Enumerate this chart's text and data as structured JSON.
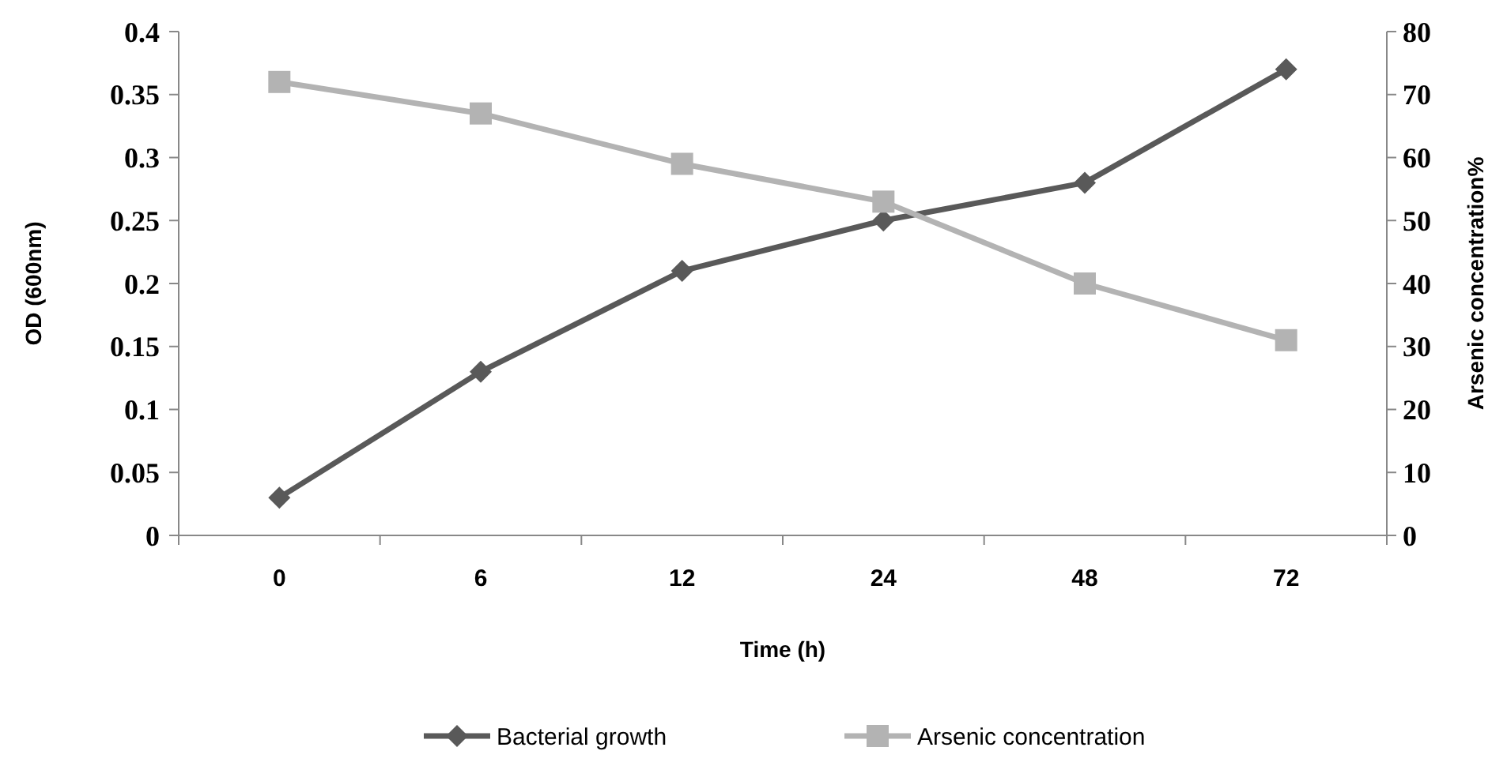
{
  "chart_data": {
    "type": "line",
    "xlabel": "Time (h)",
    "ylabel": "OD (600nm)",
    "y2label": "Arsenic concentration%",
    "categories": [
      "0",
      "6",
      "12",
      "24",
      "48",
      "72"
    ],
    "series": [
      {
        "name": "Bacterial growth",
        "color": "#595959",
        "values": [
          0.03,
          0.13,
          0.21,
          0.25,
          0.28,
          0.37
        ],
        "marker": "diamond"
      },
      {
        "name": "Arsenic concentration",
        "color": "#b3b3b3",
        "values": [
          72,
          67,
          59,
          53,
          40,
          31
        ],
        "axis": "y2",
        "marker": "square"
      }
    ],
    "ylim": [
      0,
      0.4
    ],
    "yticks": [
      0,
      0.05,
      0.1,
      0.15,
      0.2,
      0.25,
      0.3,
      0.35,
      0.4
    ],
    "y2lim": [
      0,
      80
    ],
    "y2ticks": [
      0,
      10,
      20,
      30,
      40,
      50,
      60,
      70,
      80
    ],
    "grid": false,
    "legend": "bottom"
  }
}
